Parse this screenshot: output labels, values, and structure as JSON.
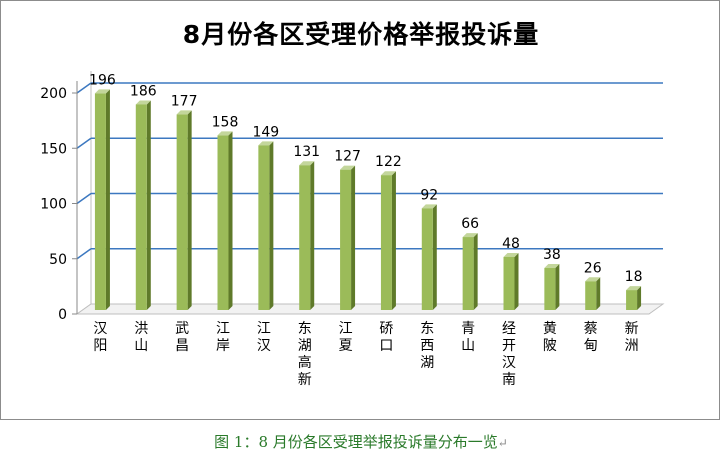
{
  "colors": {
    "bar": "#9bbb59",
    "bar_dark": "#5f7a2a",
    "gridline": "#3c78c0",
    "floor": "#bfbfbf",
    "caption": "#2a7a2a"
  },
  "caption": "图 1：8 月份各区受理举报投诉量分布一览",
  "caption_mark": "↵",
  "chart_data": {
    "type": "bar",
    "title": "8月份各区受理价格举报投诉量",
    "xlabel": "",
    "ylabel": "",
    "ylim": [
      0,
      200
    ],
    "yticks": [
      0,
      50,
      100,
      150,
      200
    ],
    "grid": true,
    "legend": "none",
    "categories": [
      "汉阳",
      "洪山",
      "武昌",
      "江岸",
      "江汉",
      "东湖高新",
      "江夏",
      "硚口",
      "东西湖",
      "青山",
      "经开汉南",
      "黄陂",
      "蔡甸",
      "新洲"
    ],
    "values": [
      196,
      186,
      177,
      158,
      149,
      131,
      127,
      122,
      92,
      66,
      48,
      38,
      26,
      18
    ]
  }
}
